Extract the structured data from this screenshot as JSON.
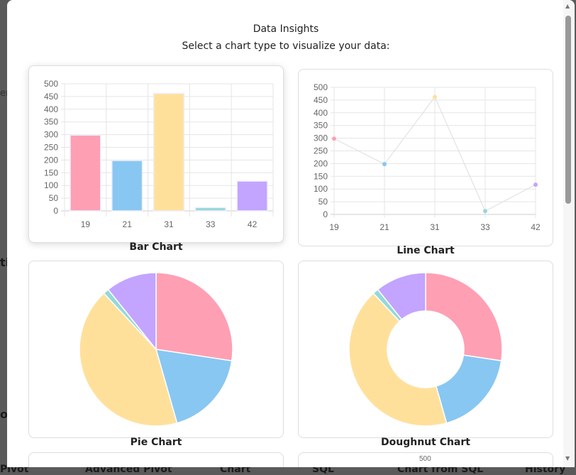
{
  "background": {
    "fragments": [
      "er",
      "tic",
      "ols",
      "Pivot",
      "Advanced Pivot",
      "Chart",
      "SQL",
      "Chart from SQL",
      "History"
    ]
  },
  "modal": {
    "title": "Data Insights",
    "subtitle": "Select a chart type to visualize your data:"
  },
  "charts": {
    "bar_label": "Bar Chart",
    "line_label": "Line Chart",
    "pie_label": "Pie Chart",
    "doughnut_label": "Doughnut Chart",
    "partial_tick": "500"
  },
  "colors": [
    "#ff9fb3",
    "#88c7f2",
    "#ffe09b",
    "#93d9d9",
    "#c3a4ff"
  ],
  "chart_data": [
    {
      "type": "bar",
      "categories": [
        "19",
        "21",
        "31",
        "33",
        "42"
      ],
      "values": [
        298,
        198,
        462,
        13,
        117
      ],
      "ylim": [
        0,
        500
      ],
      "yticks": [
        0,
        50,
        100,
        150,
        200,
        250,
        300,
        350,
        400,
        450,
        500
      ],
      "grid": true
    },
    {
      "type": "line",
      "categories": [
        "19",
        "21",
        "31",
        "33",
        "42"
      ],
      "values": [
        298,
        198,
        462,
        13,
        117
      ],
      "ylim": [
        0,
        500
      ],
      "yticks": [
        0,
        50,
        100,
        150,
        200,
        250,
        300,
        350,
        400,
        450,
        500
      ],
      "grid": true
    },
    {
      "type": "pie",
      "categories": [
        "19",
        "21",
        "31",
        "33",
        "42"
      ],
      "values": [
        298,
        198,
        462,
        13,
        117
      ]
    },
    {
      "type": "doughnut",
      "categories": [
        "19",
        "21",
        "31",
        "33",
        "42"
      ],
      "values": [
        298,
        198,
        462,
        13,
        117
      ]
    }
  ]
}
